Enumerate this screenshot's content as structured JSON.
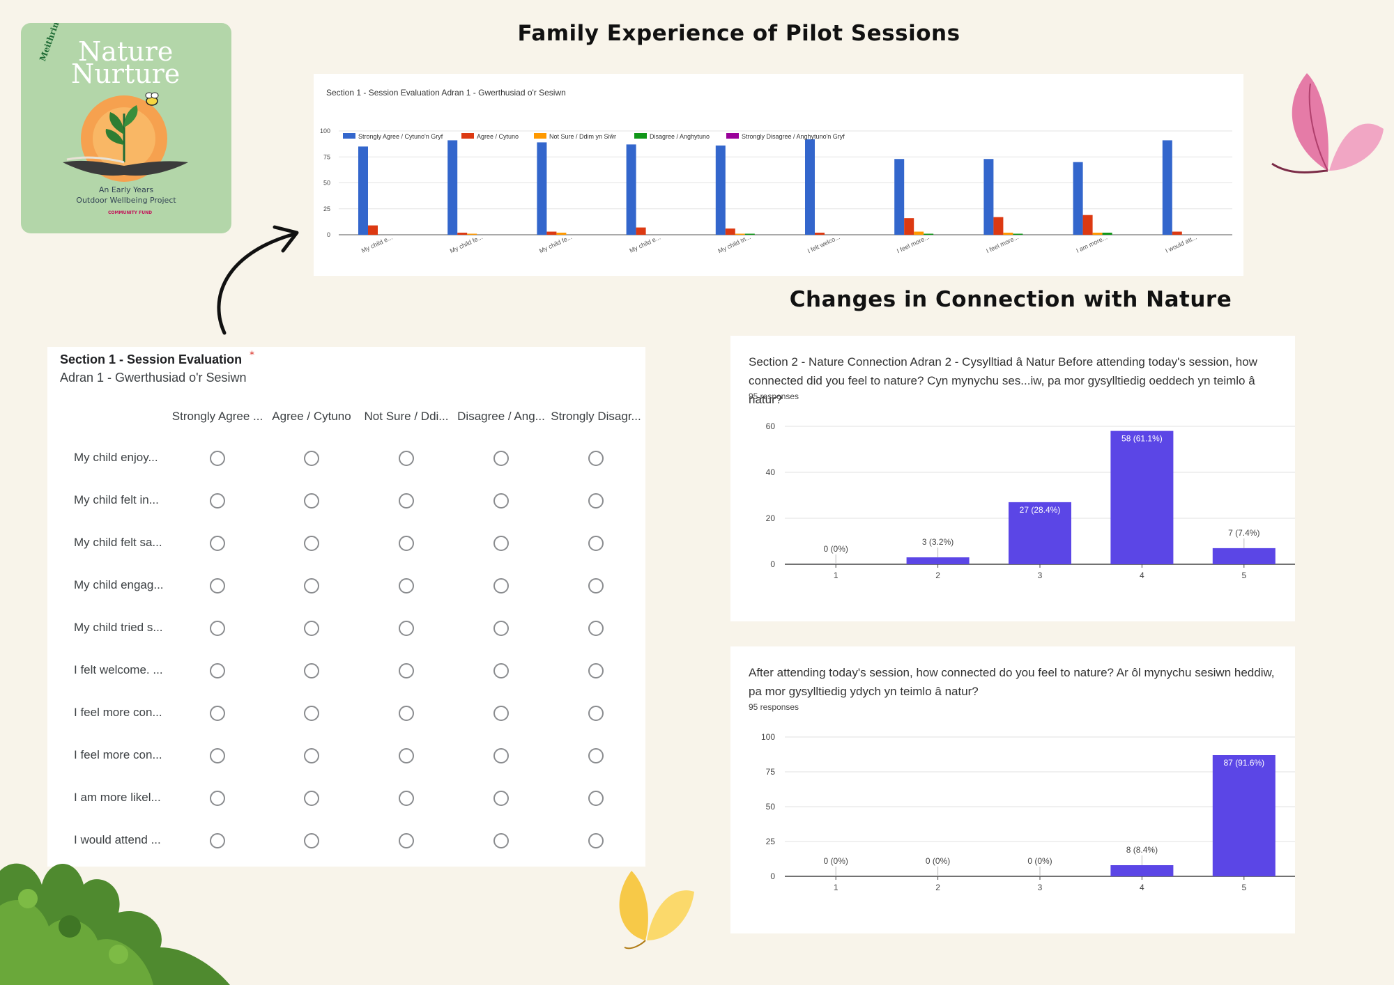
{
  "headings": {
    "family": "Family Experience of Pilot Sessions",
    "connection": "Changes in Connection with Nature"
  },
  "logo": {
    "welsh": "Meithrin Natur",
    "line1": "Nature",
    "line2": "Nurture",
    "tagline1": "An Early Years",
    "tagline2": "Outdoor Wellbeing Project",
    "funder": "COMMUNITY FUND"
  },
  "form": {
    "title": "Section 1 - Session Evaluation",
    "required": "*",
    "subtitle": "Adran 1 - Gwerthusiad o'r Sesiwn",
    "columns": [
      "Strongly Agree ...",
      "Agree / Cytuno",
      "Not Sure / Ddi...",
      "Disagree / Ang...",
      "Strongly Disagr..."
    ],
    "rows": [
      "My child enjoy...",
      "My child felt in...",
      "My child felt sa...",
      "My child engag...",
      "My child tried s...",
      "I felt welcome. ...",
      "I feel more con...",
      "I feel more con...",
      "I am more likel...",
      "I would attend ..."
    ]
  },
  "chart_data": [
    {
      "type": "bar",
      "title": "Section 1 - Session Evaluation Adran 1 - Gwerthusiad o'r Sesiwn",
      "categories": [
        "My child e...",
        "My child fe...",
        "My child fe...",
        "My child e...",
        "My child tri...",
        "I felt welco...",
        "I feel more...",
        "I feel more...",
        "I am more...",
        "I would att..."
      ],
      "series": [
        {
          "name": "Strongly Agree / Cytuno'n Gryf",
          "color": "#3366cc",
          "values": [
            85,
            91,
            89,
            87,
            86,
            92,
            73,
            73,
            70,
            91
          ]
        },
        {
          "name": "Agree / Cytuno",
          "color": "#dc3912",
          "values": [
            9,
            2,
            3,
            7,
            6,
            2,
            16,
            17,
            19,
            3
          ]
        },
        {
          "name": "Not Sure / Ddim yn Siŵr",
          "color": "#ff9900",
          "values": [
            0,
            1,
            2,
            0,
            1,
            0,
            3,
            2,
            2,
            0
          ]
        },
        {
          "name": "Disagree / Anghytuno",
          "color": "#109618",
          "values": [
            0,
            0,
            0,
            0,
            1,
            0,
            1,
            1,
            2,
            0
          ]
        },
        {
          "name": "Strongly Disagree / Anghytuno'n Gryf",
          "color": "#990099",
          "values": [
            0,
            0,
            0,
            0,
            0,
            0,
            0,
            0,
            0,
            0
          ]
        }
      ],
      "yticks": [
        0,
        25,
        50,
        75,
        100
      ],
      "ylim": [
        0,
        100
      ],
      "legend": "top-left",
      "grid": true
    },
    {
      "type": "bar",
      "title": "Section 2 - Nature Connection Adran 2 - Cysylltiad â Natur     Before attending today's session, how connected did you feel to nature?  Cyn mynychu ses...iw, pa mor gysylltiedig oeddech yn teimlo â natur?",
      "responses": "95 responses",
      "categories": [
        "1",
        "2",
        "3",
        "4",
        "5"
      ],
      "values": [
        0,
        3,
        27,
        58,
        7
      ],
      "labels": [
        "0 (0%)",
        "3 (3.2%)",
        "27 (28.4%)",
        "58 (61.1%)",
        "7 (7.4%)"
      ],
      "yticks": [
        0,
        20,
        40,
        60
      ],
      "ylim": [
        0,
        60
      ],
      "color": "#5b46e6",
      "grid": true
    },
    {
      "type": "bar",
      "title": "After attending today's session, how connected do you feel to nature?  Ar ôl mynychu sesiwn heddiw, pa mor gysylltiedig ydych yn teimlo â natur?",
      "responses": "95 responses",
      "categories": [
        "1",
        "2",
        "3",
        "4",
        "5"
      ],
      "values": [
        0,
        0,
        0,
        8,
        87
      ],
      "labels": [
        "0 (0%)",
        "0 (0%)",
        "0 (0%)",
        "8 (8.4%)",
        "87 (91.6%)"
      ],
      "yticks": [
        0,
        25,
        50,
        75,
        100
      ],
      "ylim": [
        0,
        100
      ],
      "color": "#5b46e6",
      "grid": true
    }
  ]
}
